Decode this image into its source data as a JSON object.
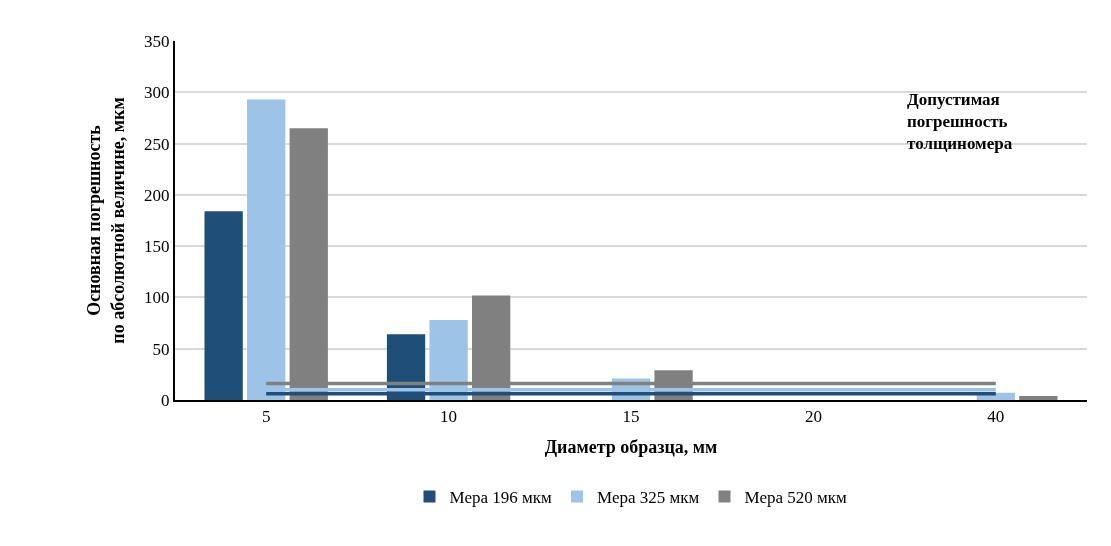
{
  "chart_data": {
    "type": "bar",
    "xlabel": "Диаметр образца, мм",
    "ylabel": "Основная погрешность\nпо абсолютной величине, мкм",
    "categories": [
      "5",
      "10",
      "15",
      "20",
      "40"
    ],
    "series": [
      {
        "name": "Мера 196 мкм",
        "color": "#1f4e79",
        "values": [
          184,
          64,
          null,
          null,
          null
        ]
      },
      {
        "name": "Мера 325 мкм",
        "color": "#9dc3e6",
        "values": [
          293,
          78,
          21,
          null,
          7
        ]
      },
      {
        "name": "Мера 520 мкм",
        "color": "#808080",
        "values": [
          265,
          102,
          29,
          null,
          4
        ]
      },
      {
        "type": "line",
        "color": "#808080",
        "values": [
          16,
          16,
          16,
          16,
          16
        ]
      },
      {
        "type": "line",
        "color": "#9dc3e6",
        "values": [
          10,
          10,
          10,
          10,
          10
        ]
      },
      {
        "type": "line",
        "color": "#1f4e79",
        "values": [
          6,
          6,
          6,
          6,
          6
        ]
      }
    ],
    "annotations": [
      "Допустимая\nпогрешность\nтолщиномера"
    ],
    "ylim": [
      0,
      350
    ],
    "yticks": [
      0,
      50,
      100,
      150,
      200,
      250,
      300,
      350
    ],
    "grid": "y",
    "legend": "bottom"
  }
}
